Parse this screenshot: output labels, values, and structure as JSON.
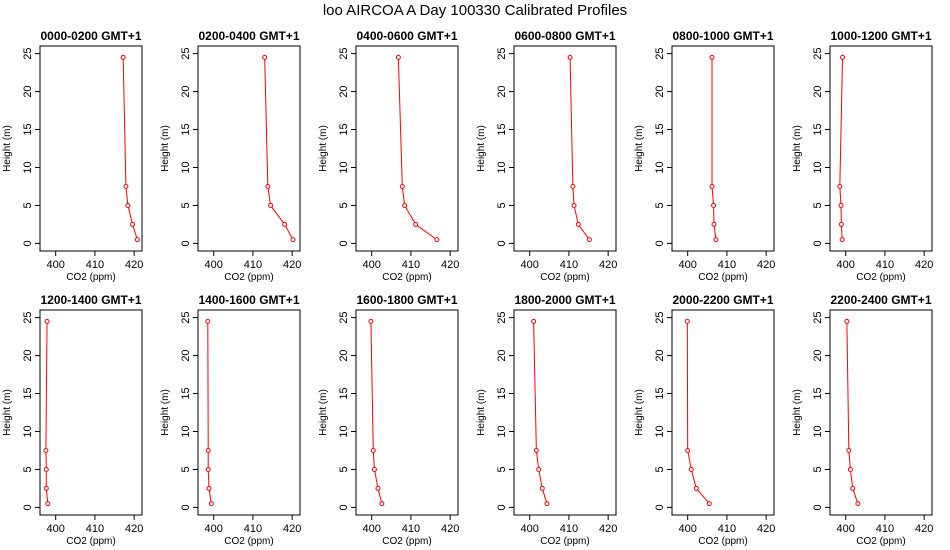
{
  "title": "loo AIRCOA A  Day 100330  Calibrated Profiles",
  "chart_data": [
    {
      "type": "line",
      "title": "0000-0200 GMT+1",
      "xlabel": "CO2 (ppm)",
      "ylabel": "Height (m)",
      "xlim": [
        396,
        422
      ],
      "ylim": [
        -1,
        26
      ],
      "xticks": [
        400,
        410,
        420
      ],
      "yticks": [
        0,
        5,
        10,
        15,
        20,
        25
      ],
      "series": [
        {
          "color": "#ff0000",
          "x": [
            420.8,
            419.6,
            418.4,
            417.9,
            417.2
          ],
          "y": [
            0.5,
            2.5,
            5,
            7.5,
            24.5
          ]
        }
      ]
    },
    {
      "type": "line",
      "title": "0200-0400 GMT+1",
      "xlabel": "CO2 (ppm)",
      "ylabel": "Height (m)",
      "xlim": [
        396,
        422
      ],
      "ylim": [
        -1,
        26
      ],
      "xticks": [
        400,
        410,
        420
      ],
      "yticks": [
        0,
        5,
        10,
        15,
        20,
        25
      ],
      "series": [
        {
          "color": "#ff0000",
          "x": [
            420.2,
            418.1,
            414.5,
            413.8,
            413.0
          ],
          "y": [
            0.5,
            2.5,
            5,
            7.5,
            24.5
          ]
        }
      ]
    },
    {
      "type": "line",
      "title": "0400-0600 GMT+1",
      "xlabel": "CO2 (ppm)",
      "ylabel": "Height (m)",
      "xlim": [
        396,
        422
      ],
      "ylim": [
        -1,
        26
      ],
      "xticks": [
        400,
        410,
        420
      ],
      "yticks": [
        0,
        5,
        10,
        15,
        20,
        25
      ],
      "series": [
        {
          "color": "#ff0000",
          "x": [
            416.6,
            411.2,
            408.4,
            407.8,
            406.8
          ],
          "y": [
            0.5,
            2.5,
            5,
            7.5,
            24.5
          ]
        }
      ]
    },
    {
      "type": "line",
      "title": "0600-0800 GMT+1",
      "xlabel": "CO2 (ppm)",
      "ylabel": "Height (m)",
      "xlim": [
        396,
        422
      ],
      "ylim": [
        -1,
        26
      ],
      "xticks": [
        400,
        410,
        420
      ],
      "yticks": [
        0,
        5,
        10,
        15,
        20,
        25
      ],
      "series": [
        {
          "color": "#ff0000",
          "x": [
            415.2,
            412.4,
            411.3,
            411.0,
            410.3
          ],
          "y": [
            0.5,
            2.5,
            5,
            7.5,
            24.5
          ]
        }
      ]
    },
    {
      "type": "line",
      "title": "0800-1000 GMT+1",
      "xlabel": "CO2 (ppm)",
      "ylabel": "Height (m)",
      "xlim": [
        396,
        422
      ],
      "ylim": [
        -1,
        26
      ],
      "xticks": [
        400,
        410,
        420
      ],
      "yticks": [
        0,
        5,
        10,
        15,
        20,
        25
      ],
      "series": [
        {
          "color": "#ff0000",
          "x": [
            407.2,
            406.7,
            406.6,
            406.2,
            406.2
          ],
          "y": [
            0.5,
            2.5,
            5,
            7.5,
            24.5
          ]
        }
      ]
    },
    {
      "type": "line",
      "title": "1000-1200 GMT+1",
      "xlabel": "CO2 (ppm)",
      "ylabel": "Height (m)",
      "xlim": [
        396,
        422
      ],
      "ylim": [
        -1,
        26
      ],
      "xticks": [
        400,
        410,
        420
      ],
      "yticks": [
        0,
        5,
        10,
        15,
        20,
        25
      ],
      "series": [
        {
          "color": "#ff0000",
          "x": [
            399.1,
            398.9,
            398.8,
            398.5,
            399.2
          ],
          "y": [
            0.5,
            2.5,
            5,
            7.5,
            24.5
          ]
        }
      ]
    },
    {
      "type": "line",
      "title": "1200-1400 GMT+1",
      "xlabel": "CO2 (ppm)",
      "ylabel": "Height (m)",
      "xlim": [
        396,
        422
      ],
      "ylim": [
        -1,
        26
      ],
      "xticks": [
        400,
        410,
        420
      ],
      "yticks": [
        0,
        5,
        10,
        15,
        20,
        25
      ],
      "series": [
        {
          "color": "#ff0000",
          "x": [
            398.0,
            397.6,
            397.6,
            397.5,
            397.8
          ],
          "y": [
            0.5,
            2.5,
            5,
            7.5,
            24.5
          ]
        }
      ]
    },
    {
      "type": "line",
      "title": "1400-1600 GMT+1",
      "xlabel": "CO2 (ppm)",
      "ylabel": "Height (m)",
      "xlim": [
        396,
        422
      ],
      "ylim": [
        -1,
        26
      ],
      "xticks": [
        400,
        410,
        420
      ],
      "yticks": [
        0,
        5,
        10,
        15,
        20,
        25
      ],
      "series": [
        {
          "color": "#ff0000",
          "x": [
            399.4,
            398.8,
            398.6,
            398.6,
            398.5
          ],
          "y": [
            0.5,
            2.5,
            5,
            7.5,
            24.5
          ]
        }
      ]
    },
    {
      "type": "line",
      "title": "1600-1800 GMT+1",
      "xlabel": "CO2 (ppm)",
      "ylabel": "Height (m)",
      "xlim": [
        396,
        422
      ],
      "ylim": [
        -1,
        26
      ],
      "xticks": [
        400,
        410,
        420
      ],
      "yticks": [
        0,
        5,
        10,
        15,
        20,
        25
      ],
      "series": [
        {
          "color": "#ff0000",
          "x": [
            402.6,
            401.6,
            400.7,
            400.4,
            399.8
          ],
          "y": [
            0.5,
            2.5,
            5,
            7.5,
            24.5
          ]
        }
      ]
    },
    {
      "type": "line",
      "title": "1800-2000 GMT+1",
      "xlabel": "CO2 (ppm)",
      "ylabel": "Height (m)",
      "xlim": [
        396,
        422
      ],
      "ylim": [
        -1,
        26
      ],
      "xticks": [
        400,
        410,
        420
      ],
      "yticks": [
        0,
        5,
        10,
        15,
        20,
        25
      ],
      "series": [
        {
          "color": "#ff0000",
          "x": [
            404.4,
            403.2,
            402.3,
            401.7,
            401.0
          ],
          "y": [
            0.5,
            2.5,
            5,
            7.5,
            24.5
          ]
        }
      ]
    },
    {
      "type": "line",
      "title": "2000-2200 GMT+1",
      "xlabel": "CO2 (ppm)",
      "ylabel": "Height (m)",
      "xlim": [
        396,
        422
      ],
      "ylim": [
        -1,
        26
      ],
      "xticks": [
        400,
        410,
        420
      ],
      "yticks": [
        0,
        5,
        10,
        15,
        20,
        25
      ],
      "series": [
        {
          "color": "#ff0000",
          "x": [
            405.5,
            402.2,
            400.9,
            400.0,
            399.9
          ],
          "y": [
            0.5,
            2.5,
            5,
            7.5,
            24.5
          ]
        }
      ]
    },
    {
      "type": "line",
      "title": "2200-2400 GMT+1",
      "xlabel": "CO2 (ppm)",
      "ylabel": "Height (m)",
      "xlim": [
        396,
        422
      ],
      "ylim": [
        -1,
        26
      ],
      "xticks": [
        400,
        410,
        420
      ],
      "yticks": [
        0,
        5,
        10,
        15,
        20,
        25
      ],
      "series": [
        {
          "color": "#ff0000",
          "x": [
            403.1,
            401.8,
            401.2,
            400.8,
            400.3
          ],
          "y": [
            0.5,
            2.5,
            5,
            7.5,
            24.5
          ]
        }
      ]
    }
  ]
}
